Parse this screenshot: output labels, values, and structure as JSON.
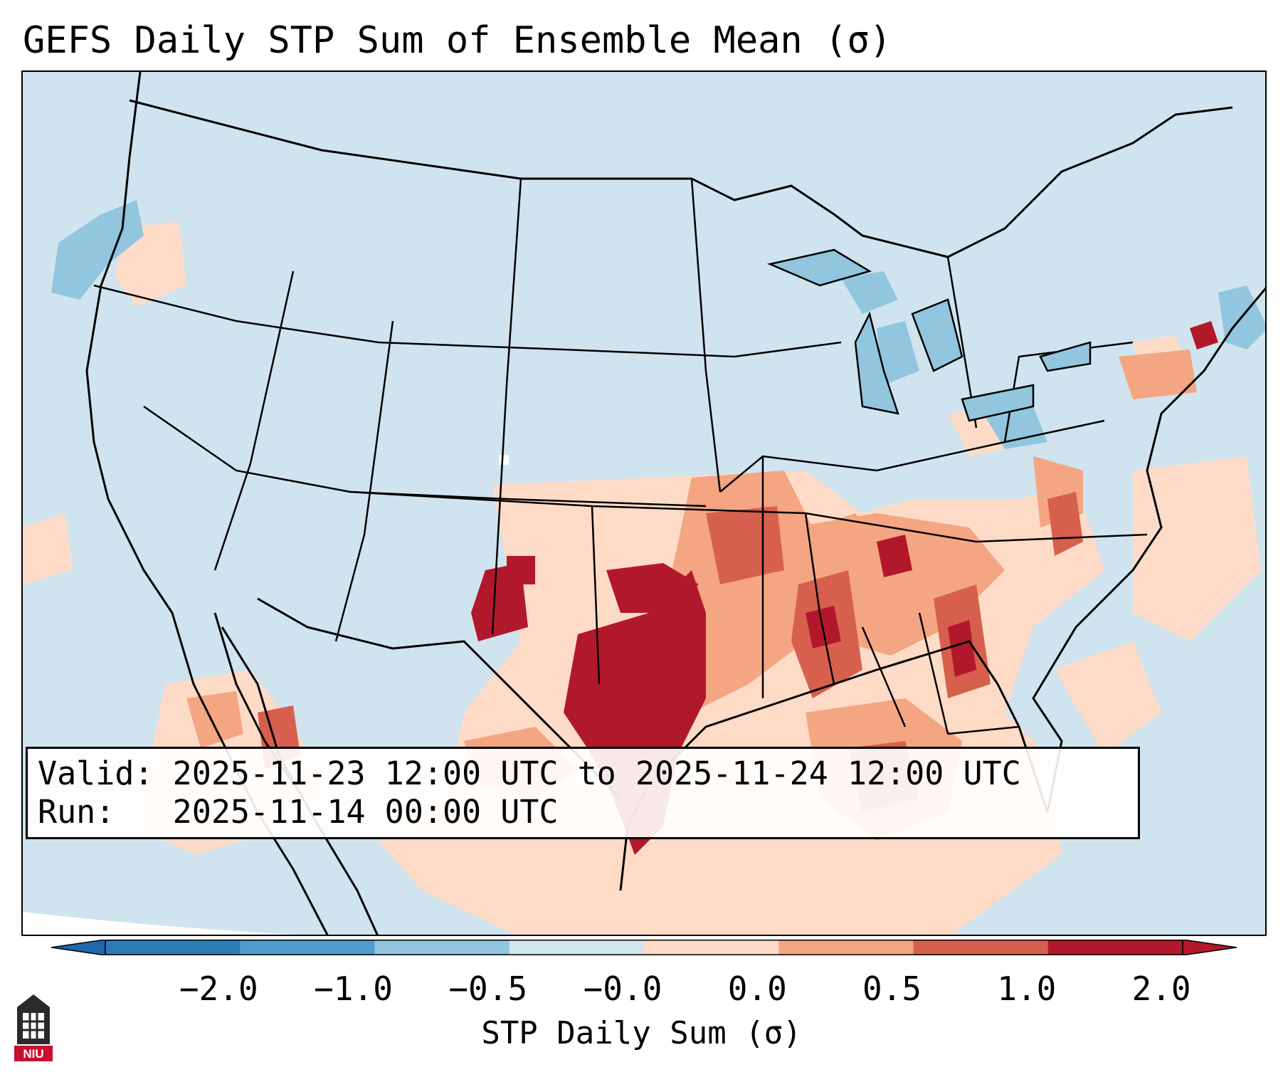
{
  "title": "GEFS Daily STP Sum of Ensemble Mean (σ)",
  "info": {
    "valid_label": "Valid:",
    "valid_value": "2025-11-23 12:00 UTC to 2025-11-24 12:00 UTC",
    "run_label": "Run:",
    "run_value": "2025-11-14 00:00 UTC"
  },
  "colorbar": {
    "label": "STP Daily Sum (σ)",
    "ticks": [
      "−2.0",
      "−1.0",
      "−0.5",
      "−0.0",
      "0.0",
      "0.5",
      "1.0",
      "2.0"
    ],
    "colors": [
      "#2c7bb6",
      "#4f9ccd",
      "#92c5de",
      "#d1e5f0",
      "#fddbc7",
      "#f4a582",
      "#d6604d",
      "#b2182b"
    ],
    "below_color": "#2166ac",
    "above_color": "#b2182b"
  },
  "map": {
    "region": "Continental United States",
    "background_color": "#d0e4ef",
    "outside_domain_color": "#ffffff"
  },
  "logo_text": "NIU"
}
